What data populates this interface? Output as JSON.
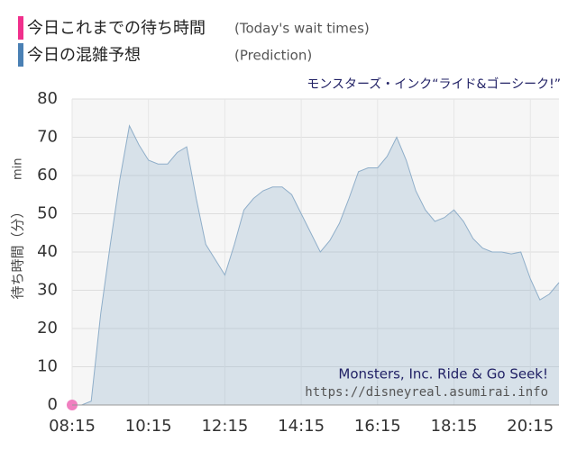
{
  "chart_data": {
    "type": "area",
    "title": "モンスターズ・インク“ライド&ゴーシーク!”",
    "ylabel": "待ち時間（分）",
    "yunit": "min",
    "annotations": [
      "Monsters, Inc. Ride & Go Seek!",
      "https://disneyreal.asumirai.info"
    ],
    "xlim": [
      495,
      1260
    ],
    "xticks": [
      {
        "value": 495,
        "label": "08:15"
      },
      {
        "value": 615,
        "label": "10:15"
      },
      {
        "value": 735,
        "label": "12:15"
      },
      {
        "value": 855,
        "label": "14:15"
      },
      {
        "value": 975,
        "label": "16:15"
      },
      {
        "value": 1095,
        "label": "18:15"
      },
      {
        "value": 1215,
        "label": "20:15"
      }
    ],
    "ylim": [
      0,
      80
    ],
    "yticks": [
      0,
      10,
      20,
      30,
      40,
      50,
      60,
      70,
      80
    ],
    "grid": true,
    "series": [
      {
        "name": "今日これまでの待ち時間",
        "label_en": "(Today's wait times)",
        "color": "#f080c0",
        "style": "point",
        "x": [
          495
        ],
        "values": [
          0
        ]
      },
      {
        "name": "今日の混雑予想",
        "label_en": "(Prediction)",
        "color": "#8faec9",
        "style": "area",
        "x": [
          495,
          510,
          525,
          540,
          555,
          570,
          585,
          600,
          615,
          630,
          645,
          660,
          675,
          690,
          705,
          720,
          735,
          750,
          765,
          780,
          795,
          810,
          825,
          840,
          855,
          870,
          885,
          900,
          915,
          930,
          945,
          960,
          975,
          990,
          1005,
          1020,
          1035,
          1050,
          1065,
          1080,
          1095,
          1110,
          1125,
          1140,
          1155,
          1170,
          1185,
          1200,
          1215,
          1230,
          1245,
          1260
        ],
        "values": [
          0,
          0,
          1,
          24,
          42,
          59,
          73,
          68,
          64,
          63,
          63,
          66,
          67.5,
          54,
          42,
          38,
          34,
          42,
          51,
          54,
          56,
          57,
          57,
          55,
          50,
          45,
          40,
          43,
          47.5,
          54,
          61,
          62,
          62,
          65,
          70,
          64,
          56,
          51,
          48,
          49,
          51,
          48,
          43.5,
          41,
          40,
          40,
          39.5,
          40,
          33,
          27.5,
          29,
          32
        ]
      }
    ]
  }
}
